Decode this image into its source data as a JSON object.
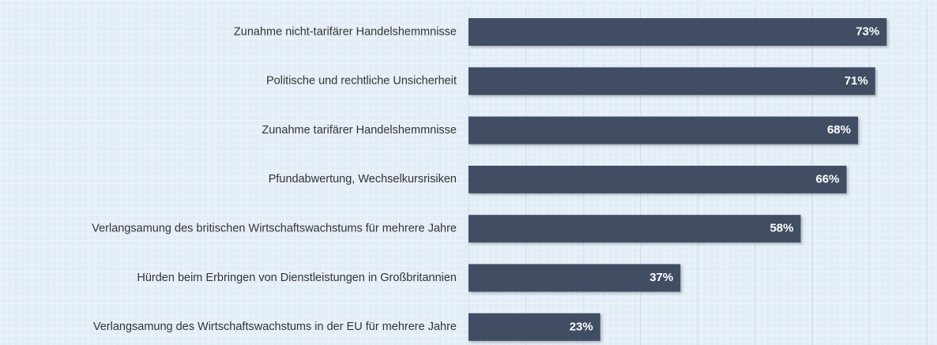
{
  "chart_data": {
    "type": "hbar",
    "categories": [
      "Zunahme nicht-tarifärer Handelshemmnisse",
      "Politische und rechtliche Unsicherheit",
      "Zunahme tarifärer Handelshemmnisse",
      "Pfundabwertung, Wechselkursrisiken",
      "Verlangsamung des britischen Wirtschaftswachstums für mehrere Jahre",
      "Hürden beim Erbringen von Dienstleistungen in Großbritannien",
      "Verlangsamung des Wirtschaftswachstums in der EU für mehrere Jahre"
    ],
    "values": [
      73,
      71,
      68,
      66,
      58,
      37,
      23
    ],
    "value_labels": [
      "73%",
      "71%",
      "68%",
      "66%",
      "58%",
      "37%",
      "23%"
    ],
    "color": "#3f4d63",
    "xlim": [
      0,
      80
    ],
    "xticks": [
      0,
      10,
      20,
      30,
      40,
      50,
      60,
      70,
      80
    ],
    "grid": true
  }
}
